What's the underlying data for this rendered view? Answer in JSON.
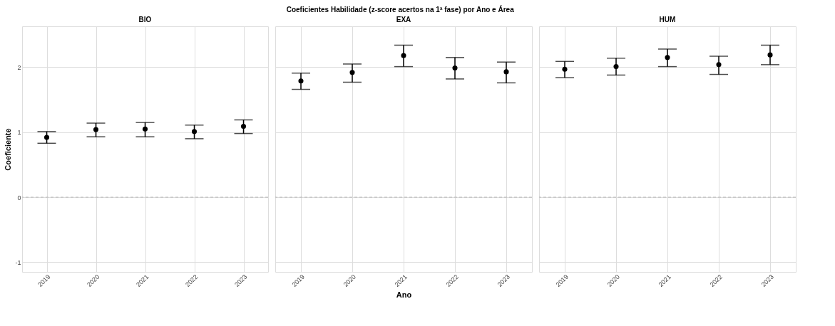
{
  "chart_data": [
    {
      "type": "scatter",
      "title": "BIO",
      "ylabel": "Coeficiente",
      "annotations": [
        "Coeficientes Habilidade (z-score acertos na 1ª fase) por Ano e Área"
      ],
      "categories": [
        "2019",
        "2020",
        "2021",
        "2022",
        "2023"
      ],
      "series": [
        {
          "color": "#000000",
          "values": [
            0.92,
            1.04,
            1.05,
            1.01,
            1.09
          ],
          "errors": [
            [
              0.83,
              1.01
            ],
            [
              0.93,
              1.14
            ],
            [
              0.93,
              1.15
            ],
            [
              0.9,
              1.11
            ],
            [
              0.98,
              1.19
            ]
          ]
        }
      ],
      "ylim": [
        -1.15,
        2.63
      ],
      "yticks": [
        -1,
        0,
        1,
        2
      ],
      "grid": true,
      "marker": "circle",
      "ref_lines": [
        {
          "axis": "y",
          "value": 0,
          "color": "#aaaaaa",
          "line_style": "dashed"
        }
      ]
    },
    {
      "type": "scatter",
      "title": "EXA",
      "xlabel": "Ano",
      "categories": [
        "2019",
        "2020",
        "2021",
        "2022",
        "2023"
      ],
      "series": [
        {
          "color": "#000000",
          "values": [
            1.79,
            1.92,
            2.18,
            1.99,
            1.93
          ],
          "errors": [
            [
              1.66,
              1.91
            ],
            [
              1.77,
              2.05
            ],
            [
              2.01,
              2.34
            ],
            [
              1.82,
              2.15
            ],
            [
              1.76,
              2.08
            ]
          ]
        }
      ],
      "ylim": [
        -1.15,
        2.63
      ],
      "yticks": [
        -1,
        0,
        1,
        2
      ],
      "grid": true,
      "marker": "circle",
      "tick_labels": "x",
      "ref_lines": [
        {
          "axis": "y",
          "value": 0,
          "color": "#aaaaaa",
          "line_style": "dashed"
        }
      ]
    },
    {
      "type": "scatter",
      "title": "HUM",
      "categories": [
        "2019",
        "2020",
        "2021",
        "2022",
        "2023"
      ],
      "series": [
        {
          "color": "#000000",
          "values": [
            1.97,
            2.01,
            2.15,
            2.04,
            2.19
          ],
          "errors": [
            [
              1.84,
              2.09
            ],
            [
              1.88,
              2.14
            ],
            [
              2.01,
              2.28
            ],
            [
              1.89,
              2.17
            ],
            [
              2.04,
              2.34
            ]
          ]
        }
      ],
      "ylim": [
        -1.15,
        2.63
      ],
      "yticks": [
        -1,
        0,
        1,
        2
      ],
      "grid": true,
      "marker": "circle",
      "tick_labels": "x",
      "ref_lines": [
        {
          "axis": "y",
          "value": 0,
          "color": "#aaaaaa",
          "line_style": "dashed"
        }
      ]
    }
  ]
}
